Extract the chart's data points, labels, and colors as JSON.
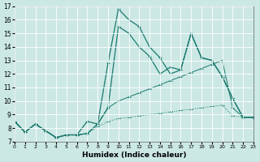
{
  "xlabel": "Humidex (Indice chaleur)",
  "xlim": [
    0,
    23
  ],
  "ylim": [
    7,
    17
  ],
  "xticks": [
    0,
    1,
    2,
    3,
    4,
    5,
    6,
    7,
    8,
    9,
    10,
    11,
    12,
    13,
    14,
    15,
    16,
    17,
    18,
    19,
    20,
    21,
    22,
    23
  ],
  "yticks": [
    7,
    8,
    9,
    10,
    11,
    12,
    13,
    14,
    15,
    16,
    17
  ],
  "bg_color": "#cce8e5",
  "line_color": "#1a7a6e",
  "grid_color": "#ffffff",
  "line1_x": [
    0,
    1,
    2,
    3,
    4,
    5,
    6,
    7,
    8,
    9,
    10,
    11,
    12,
    13,
    14,
    15,
    16,
    17,
    18,
    19,
    20,
    21,
    22,
    23
  ],
  "line1_y": [
    8.5,
    7.7,
    8.3,
    7.8,
    7.3,
    7.5,
    7.5,
    7.6,
    8.3,
    9.5,
    15.5,
    15.0,
    14.0,
    13.3,
    12.0,
    12.5,
    12.3,
    15.0,
    13.2,
    13.0,
    11.8,
    10.2,
    8.8,
    8.8
  ],
  "line2_x": [
    0,
    1,
    2,
    3,
    4,
    5,
    6,
    7,
    8,
    9,
    10,
    11,
    12,
    13,
    14,
    15,
    16,
    17,
    18,
    19,
    20,
    21,
    22,
    23
  ],
  "line2_y": [
    8.5,
    7.7,
    8.3,
    7.8,
    7.3,
    7.5,
    7.5,
    8.5,
    8.3,
    12.8,
    16.8,
    16.0,
    15.5,
    14.0,
    13.2,
    12.0,
    12.3,
    15.0,
    13.2,
    13.0,
    11.8,
    10.2,
    8.8,
    8.8
  ],
  "line3_x": [
    0,
    1,
    2,
    3,
    4,
    5,
    6,
    7,
    8,
    9,
    10,
    11,
    12,
    13,
    14,
    15,
    16,
    17,
    18,
    19,
    20,
    21,
    22,
    23
  ],
  "line3_y": [
    8.5,
    7.7,
    8.3,
    7.8,
    7.3,
    7.5,
    7.5,
    7.6,
    8.3,
    9.5,
    10.0,
    10.3,
    10.6,
    10.9,
    11.2,
    11.5,
    11.8,
    12.1,
    12.4,
    12.7,
    13.0,
    9.5,
    8.8,
    8.8
  ],
  "line4_x": [
    0,
    1,
    2,
    3,
    4,
    5,
    6,
    7,
    8,
    9,
    10,
    11,
    12,
    13,
    14,
    15,
    16,
    17,
    18,
    19,
    20,
    21,
    22,
    23
  ],
  "line4_y": [
    8.5,
    7.7,
    8.3,
    7.8,
    7.3,
    7.5,
    7.5,
    7.6,
    8.1,
    8.5,
    8.7,
    8.8,
    8.9,
    9.0,
    9.1,
    9.2,
    9.3,
    9.4,
    9.5,
    9.6,
    9.7,
    8.9,
    8.8,
    8.8
  ]
}
